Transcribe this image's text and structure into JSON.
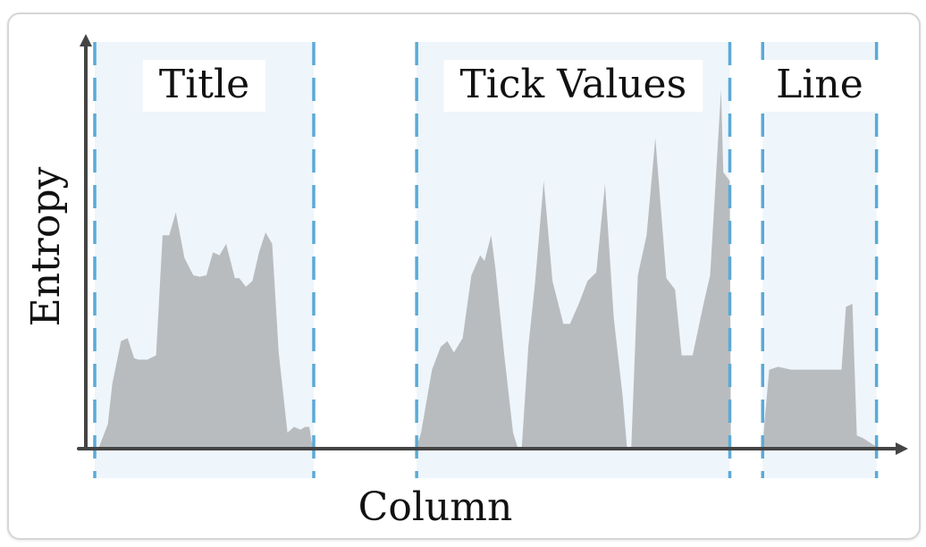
{
  "chart_data": {
    "type": "area",
    "xlabel": "Column",
    "ylabel": "Entropy",
    "ylim": [
      0,
      100
    ],
    "grid": false,
    "colors": {
      "area_fill": "#b9bcbf",
      "region_fill": "#eef5fb",
      "divider": "#5aaad6",
      "axis": "#444444",
      "label_bg": "#ffffff"
    },
    "regions": [
      {
        "label": "Title",
        "x_start": 0,
        "x_end": 100
      },
      {
        "label": "Tick Values",
        "x_start": 147,
        "x_end": 290
      },
      {
        "label": "Line",
        "x_start": 305,
        "x_end": 357
      }
    ],
    "series": [
      {
        "points": [
          [
            0,
            0
          ],
          [
            2,
            0
          ],
          [
            6,
            8
          ],
          [
            8,
            22
          ],
          [
            12,
            37
          ],
          [
            15,
            38
          ],
          [
            18,
            31
          ],
          [
            20,
            30.5
          ],
          [
            24,
            30.5
          ],
          [
            28,
            32
          ],
          [
            31,
            74
          ],
          [
            34,
            74
          ],
          [
            37,
            82
          ],
          [
            41,
            66
          ],
          [
            45,
            60
          ],
          [
            48,
            59.5
          ],
          [
            51,
            60
          ],
          [
            54,
            68
          ],
          [
            57,
            67
          ],
          [
            60,
            71
          ],
          [
            64,
            59
          ],
          [
            66,
            59
          ],
          [
            69,
            56
          ],
          [
            72,
            58
          ],
          [
            75,
            68
          ],
          [
            78,
            75
          ],
          [
            81,
            71
          ],
          [
            84,
            33
          ],
          [
            88,
            5
          ],
          [
            91,
            7
          ],
          [
            94,
            6
          ],
          [
            96,
            7
          ],
          [
            98,
            7
          ],
          [
            99,
            2
          ],
          [
            100,
            0
          ],
          [
            147,
            0
          ],
          [
            149,
            5
          ],
          [
            154,
            27
          ],
          [
            158,
            35
          ],
          [
            161,
            37
          ],
          [
            164,
            33
          ],
          [
            168,
            38
          ],
          [
            172,
            60
          ],
          [
            176,
            67
          ],
          [
            178,
            65
          ],
          [
            181,
            74
          ],
          [
            183,
            62
          ],
          [
            187,
            32
          ],
          [
            191,
            5
          ],
          [
            193,
            0
          ],
          [
            195,
            0
          ],
          [
            198,
            35
          ],
          [
            201,
            57
          ],
          [
            205,
            93
          ],
          [
            209,
            58
          ],
          [
            214,
            43
          ],
          [
            217,
            43
          ],
          [
            221,
            50
          ],
          [
            225,
            58
          ],
          [
            229,
            61
          ],
          [
            233,
            92
          ],
          [
            237,
            45
          ],
          [
            241,
            18
          ],
          [
            243,
            0
          ],
          [
            245,
            0
          ],
          [
            248,
            60
          ],
          [
            252,
            74
          ],
          [
            256,
            108
          ],
          [
            261,
            59
          ],
          [
            265,
            55
          ],
          [
            268,
            32
          ],
          [
            273,
            32
          ],
          [
            278,
            50
          ],
          [
            281,
            60
          ],
          [
            286,
            125
          ],
          [
            287,
            96
          ],
          [
            290,
            93
          ],
          [
            290.5,
            0
          ],
          [
            305,
            0
          ],
          [
            306,
            10
          ],
          [
            308,
            27
          ],
          [
            312,
            28
          ],
          [
            318,
            27
          ],
          [
            330,
            27
          ],
          [
            338,
            27
          ],
          [
            341,
            27
          ],
          [
            343,
            49
          ],
          [
            346,
            50
          ],
          [
            348,
            4
          ],
          [
            351,
            3
          ],
          [
            353,
            2
          ],
          [
            355,
            1
          ],
          [
            357,
            0
          ]
        ]
      }
    ]
  }
}
